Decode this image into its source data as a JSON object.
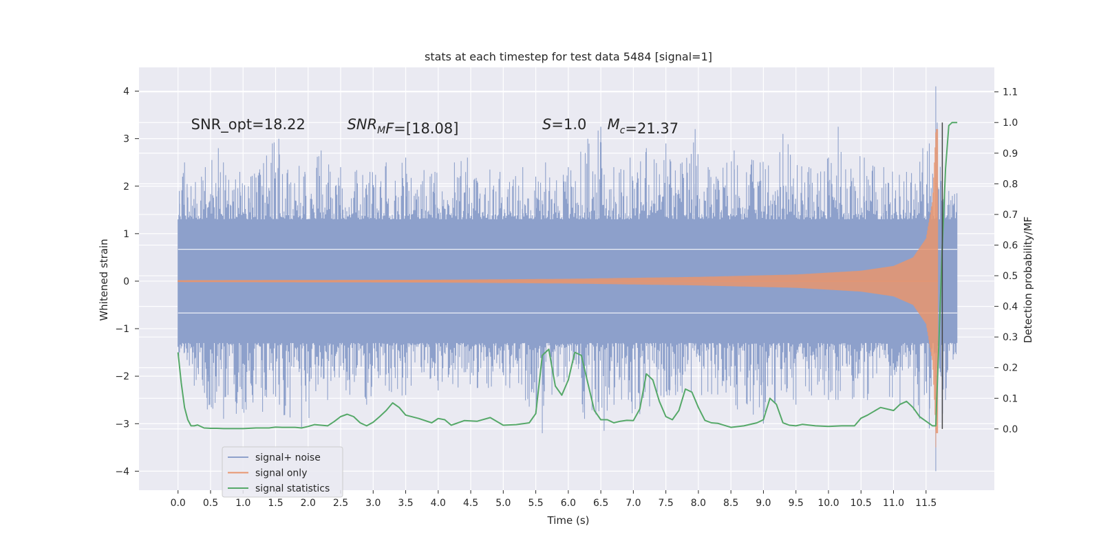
{
  "chart_data": {
    "type": "line",
    "title": "stats at each timestep for test data 5484 [signal=1]",
    "xlabel": "Time (s)",
    "ylabel": "Whitened strain",
    "y2label": "Detection probability/MF",
    "xlim": [
      -0.6,
      12.55
    ],
    "ylim": [
      -4.4,
      4.5
    ],
    "y2lim": [
      -0.2,
      1.18
    ],
    "x_ticks": [
      0.0,
      0.5,
      1.0,
      1.5,
      2.0,
      2.5,
      3.0,
      3.5,
      4.0,
      4.5,
      5.0,
      5.5,
      6.0,
      6.5,
      7.0,
      7.5,
      8.0,
      8.5,
      9.0,
      9.5,
      10.0,
      10.5,
      11.0,
      11.5
    ],
    "x_tick_labels": [
      "0.0",
      "0.5",
      "1.0",
      "1.5",
      "2.0",
      "2.5",
      "3.0",
      "3.5",
      "4.0",
      "4.5",
      "5.0",
      "5.5",
      "6.0",
      "6.5",
      "7.0",
      "7.5",
      "8.0",
      "8.5",
      "9.0",
      "9.5",
      "10.0",
      "10.5",
      "11.0",
      "11.5"
    ],
    "y_ticks": [
      -4,
      -3,
      -2,
      -1,
      0,
      1,
      2,
      3,
      4
    ],
    "y_tick_labels": [
      "−4",
      "−3",
      "−2",
      "−1",
      "0",
      "1",
      "2",
      "3",
      "4"
    ],
    "y2_ticks": [
      0.0,
      0.1,
      0.2,
      0.3,
      0.4,
      0.5,
      0.6,
      0.7,
      0.8,
      0.9,
      1.0,
      1.1
    ],
    "y2_tick_labels": [
      "0.0",
      "0.1",
      "0.2",
      "0.3",
      "0.4",
      "0.5",
      "0.6",
      "0.7",
      "0.8",
      "0.9",
      "1.0",
      "1.1"
    ],
    "grid": true,
    "legend_position": "bottom-left",
    "annotations": [
      {
        "key": "snr-opt",
        "parts": [
          {
            "text": "SNR_opt=18.22",
            "style": "normal"
          }
        ],
        "x": 0.2,
        "y": 3.3
      },
      {
        "key": "snr-mf",
        "parts": [
          {
            "text": "SNR",
            "style": "italic"
          },
          {
            "text": "M",
            "style": "italic-sub"
          },
          {
            "text": "F",
            "style": "italic"
          },
          {
            "text": "=[18.08]",
            "style": "normal"
          }
        ],
        "x": 2.6,
        "y": 3.3
      },
      {
        "key": "s",
        "parts": [
          {
            "text": "S",
            "style": "italic"
          },
          {
            "text": "=1.0",
            "style": "normal"
          }
        ],
        "x": 5.6,
        "y": 3.3
      },
      {
        "key": "mc",
        "parts": [
          {
            "text": "M",
            "style": "italic"
          },
          {
            "text": "c",
            "style": "italic-sub"
          },
          {
            "text": "=21.37",
            "style": "normal"
          }
        ],
        "x": 6.6,
        "y": 3.3
      }
    ],
    "series": [
      {
        "name": "signal+ noise",
        "color": "#8da0cb",
        "axis": "left",
        "style": "noise-band",
        "x_range": [
          0.0,
          11.98
        ],
        "band": [
          -1.3,
          1.3
        ],
        "peaks_up": [
          [
            0.02,
            1.9
          ],
          [
            0.1,
            2.5
          ],
          [
            0.2,
            2.0
          ],
          [
            0.42,
            2.4
          ],
          [
            0.52,
            2.55
          ],
          [
            0.62,
            2.8
          ],
          [
            0.95,
            2.3
          ],
          [
            1.12,
            2.2
          ],
          [
            1.45,
            2.9
          ],
          [
            1.55,
            3.0
          ],
          [
            1.95,
            2.3
          ],
          [
            2.2,
            2.75
          ],
          [
            2.5,
            2.4
          ],
          [
            2.95,
            2.3
          ],
          [
            3.2,
            2.5
          ],
          [
            3.5,
            2.6
          ],
          [
            3.95,
            2.3
          ],
          [
            4.25,
            2.5
          ],
          [
            4.45,
            2.6
          ],
          [
            4.95,
            2.3
          ],
          [
            5.3,
            2.4
          ],
          [
            5.5,
            2.2
          ],
          [
            5.65,
            2.5
          ],
          [
            6.0,
            2.4
          ],
          [
            6.3,
            3.0
          ],
          [
            6.5,
            3.25
          ],
          [
            6.7,
            2.4
          ],
          [
            6.95,
            2.6
          ],
          [
            7.2,
            2.8
          ],
          [
            7.5,
            2.9
          ],
          [
            7.75,
            2.5
          ],
          [
            7.95,
            3.2
          ],
          [
            8.15,
            2.4
          ],
          [
            8.55,
            2.75
          ],
          [
            8.95,
            2.5
          ],
          [
            9.3,
            3.1
          ],
          [
            9.7,
            2.4
          ],
          [
            10.0,
            2.6
          ],
          [
            10.15,
            3.25
          ],
          [
            10.55,
            2.6
          ],
          [
            10.85,
            2.4
          ],
          [
            11.2,
            2.3
          ],
          [
            11.45,
            2.8
          ],
          [
            11.55,
            2.9
          ],
          [
            11.65,
            4.1
          ],
          [
            11.75,
            2.2
          ],
          [
            11.85,
            1.9
          ]
        ],
        "peaks_down": [
          [
            0.02,
            -0.9
          ],
          [
            0.1,
            -1.5
          ],
          [
            0.25,
            -2.2
          ],
          [
            0.45,
            -2.7
          ],
          [
            0.7,
            -2.9
          ],
          [
            1.3,
            -2.75
          ],
          [
            1.9,
            -3.1
          ],
          [
            2.3,
            -2.5
          ],
          [
            2.9,
            -2.6
          ],
          [
            3.5,
            -2.4
          ],
          [
            4.0,
            -2.3
          ],
          [
            4.6,
            -2.25
          ],
          [
            5.1,
            -2.25
          ],
          [
            5.6,
            -3.2
          ],
          [
            5.85,
            -2.0
          ],
          [
            6.25,
            -2.9
          ],
          [
            6.55,
            -3.15
          ],
          [
            7.1,
            -2.8
          ],
          [
            7.65,
            -2.4
          ],
          [
            8.05,
            -2.4
          ],
          [
            8.6,
            -2.7
          ],
          [
            9.0,
            -3.0
          ],
          [
            9.5,
            -2.6
          ],
          [
            10.0,
            -2.5
          ],
          [
            10.6,
            -2.5
          ],
          [
            11.1,
            -2.6
          ],
          [
            11.4,
            -2.9
          ],
          [
            11.55,
            -3.1
          ],
          [
            11.65,
            -4.0
          ],
          [
            11.8,
            -2.5
          ],
          [
            11.95,
            -1.5
          ]
        ]
      },
      {
        "name": "signal only",
        "color": "#e8956e",
        "axis": "left",
        "style": "chirp",
        "x_range": [
          0.0,
          11.68
        ],
        "amplitude_points": [
          [
            0.0,
            0.02
          ],
          [
            4.0,
            0.03
          ],
          [
            6.0,
            0.05
          ],
          [
            8.0,
            0.09
          ],
          [
            9.5,
            0.14
          ],
          [
            10.5,
            0.22
          ],
          [
            11.0,
            0.32
          ],
          [
            11.3,
            0.5
          ],
          [
            11.5,
            0.9
          ],
          [
            11.6,
            1.7
          ],
          [
            11.65,
            3.2
          ]
        ],
        "min_value": -3.5
      },
      {
        "name": "signal statistics",
        "color": "#55a868",
        "axis": "right",
        "style": "line",
        "x": [
          0.0,
          0.05,
          0.1,
          0.15,
          0.2,
          0.25,
          0.3,
          0.4,
          0.5,
          0.6,
          0.7,
          0.8,
          0.9,
          1.0,
          1.2,
          1.4,
          1.5,
          1.6,
          1.8,
          1.9,
          2.0,
          2.1,
          2.2,
          2.3,
          2.4,
          2.5,
          2.6,
          2.7,
          2.8,
          2.9,
          3.0,
          3.1,
          3.2,
          3.3,
          3.4,
          3.5,
          3.7,
          3.9,
          4.0,
          4.1,
          4.2,
          4.4,
          4.6,
          4.8,
          5.0,
          5.2,
          5.4,
          5.5,
          5.6,
          5.7,
          5.8,
          5.9,
          6.0,
          6.1,
          6.2,
          6.3,
          6.4,
          6.5,
          6.6,
          6.7,
          6.8,
          6.9,
          7.0,
          7.1,
          7.2,
          7.3,
          7.4,
          7.5,
          7.6,
          7.7,
          7.8,
          7.9,
          8.0,
          8.1,
          8.2,
          8.3,
          8.5,
          8.7,
          8.9,
          9.0,
          9.1,
          9.2,
          9.3,
          9.4,
          9.5,
          9.6,
          9.8,
          10.0,
          10.2,
          10.4,
          10.5,
          10.6,
          10.8,
          11.0,
          11.1,
          11.2,
          11.3,
          11.4,
          11.5,
          11.6,
          11.65,
          11.7,
          11.75,
          11.8,
          11.85,
          11.9,
          11.98
        ],
        "values": [
          0.25,
          0.15,
          0.07,
          0.03,
          0.01,
          0.01,
          0.013,
          0.003,
          0.002,
          0.002,
          0.001,
          0.001,
          0.001,
          0.001,
          0.003,
          0.003,
          0.006,
          0.005,
          0.005,
          0.003,
          0.008,
          0.014,
          0.012,
          0.01,
          0.024,
          0.04,
          0.048,
          0.04,
          0.02,
          0.01,
          0.022,
          0.04,
          0.06,
          0.085,
          0.07,
          0.045,
          0.034,
          0.02,
          0.034,
          0.03,
          0.012,
          0.027,
          0.025,
          0.037,
          0.012,
          0.014,
          0.02,
          0.05,
          0.24,
          0.26,
          0.14,
          0.11,
          0.16,
          0.25,
          0.24,
          0.15,
          0.06,
          0.03,
          0.03,
          0.02,
          0.025,
          0.028,
          0.027,
          0.065,
          0.18,
          0.16,
          0.09,
          0.04,
          0.03,
          0.06,
          0.13,
          0.12,
          0.07,
          0.028,
          0.02,
          0.018,
          0.005,
          0.01,
          0.02,
          0.03,
          0.1,
          0.08,
          0.02,
          0.012,
          0.01,
          0.015,
          0.01,
          0.008,
          0.01,
          0.01,
          0.035,
          0.045,
          0.07,
          0.06,
          0.08,
          0.09,
          0.07,
          0.04,
          0.025,
          0.01,
          0.01,
          0.3,
          0.6,
          0.85,
          0.99,
          1.0,
          1.0
        ]
      }
    ],
    "vertical_line": {
      "x": 11.75,
      "color": "#444444"
    }
  }
}
